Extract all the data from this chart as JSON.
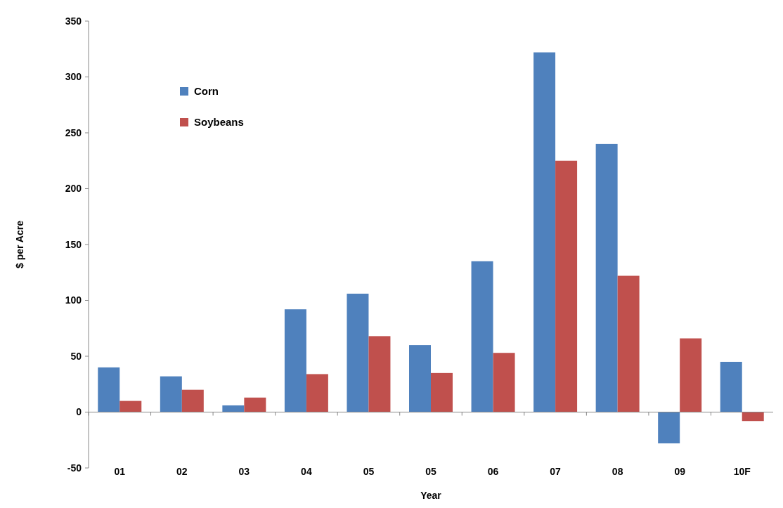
{
  "chart_data": {
    "type": "bar",
    "xlabel": "Year",
    "ylabel": "$ per Acre",
    "categories": [
      "01",
      "02",
      "03",
      "04",
      "05",
      "05",
      "06",
      "07",
      "08",
      "09",
      "10F"
    ],
    "series": [
      {
        "name": "Corn",
        "color": "#4f81bd",
        "values": [
          40,
          32,
          6,
          92,
          106,
          60,
          135,
          322,
          240,
          -28,
          45
        ]
      },
      {
        "name": "Soybeans",
        "color": "#c0504d",
        "values": [
          10,
          20,
          13,
          34,
          68,
          35,
          53,
          225,
          122,
          66,
          -8
        ]
      }
    ],
    "ylim": [
      -50,
      350
    ],
    "yticks": [
      -50,
      0,
      50,
      100,
      150,
      200,
      250,
      300,
      350
    ],
    "legend": "top left"
  }
}
